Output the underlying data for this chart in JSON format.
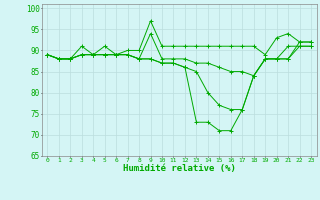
{
  "title": "",
  "xlabel": "Humidité relative (%)",
  "ylabel": "",
  "background_color": "#d4f5f5",
  "grid_color": "#aadddd",
  "line_color": "#00aa00",
  "ylim": [
    65,
    101
  ],
  "xlim": [
    -0.5,
    23.5
  ],
  "yticks": [
    65,
    70,
    75,
    80,
    85,
    90,
    95,
    100
  ],
  "xticks": [
    0,
    1,
    2,
    3,
    4,
    5,
    6,
    7,
    8,
    9,
    10,
    11,
    12,
    13,
    14,
    15,
    16,
    17,
    18,
    19,
    20,
    21,
    22,
    23
  ],
  "series": [
    [
      89,
      88,
      88,
      91,
      89,
      91,
      89,
      90,
      90,
      97,
      91,
      91,
      91,
      91,
      91,
      91,
      91,
      91,
      91,
      89,
      93,
      94,
      92,
      92
    ],
    [
      89,
      88,
      88,
      89,
      89,
      89,
      89,
      89,
      88,
      94,
      88,
      88,
      88,
      87,
      87,
      86,
      85,
      85,
      84,
      88,
      88,
      91,
      91,
      91
    ],
    [
      89,
      88,
      88,
      89,
      89,
      89,
      89,
      89,
      88,
      88,
      87,
      87,
      86,
      85,
      80,
      77,
      76,
      76,
      84,
      88,
      88,
      88,
      91,
      91
    ],
    [
      89,
      88,
      88,
      89,
      89,
      89,
      89,
      89,
      88,
      88,
      87,
      87,
      86,
      73,
      73,
      71,
      71,
      76,
      84,
      88,
      88,
      88,
      92,
      92
    ]
  ]
}
